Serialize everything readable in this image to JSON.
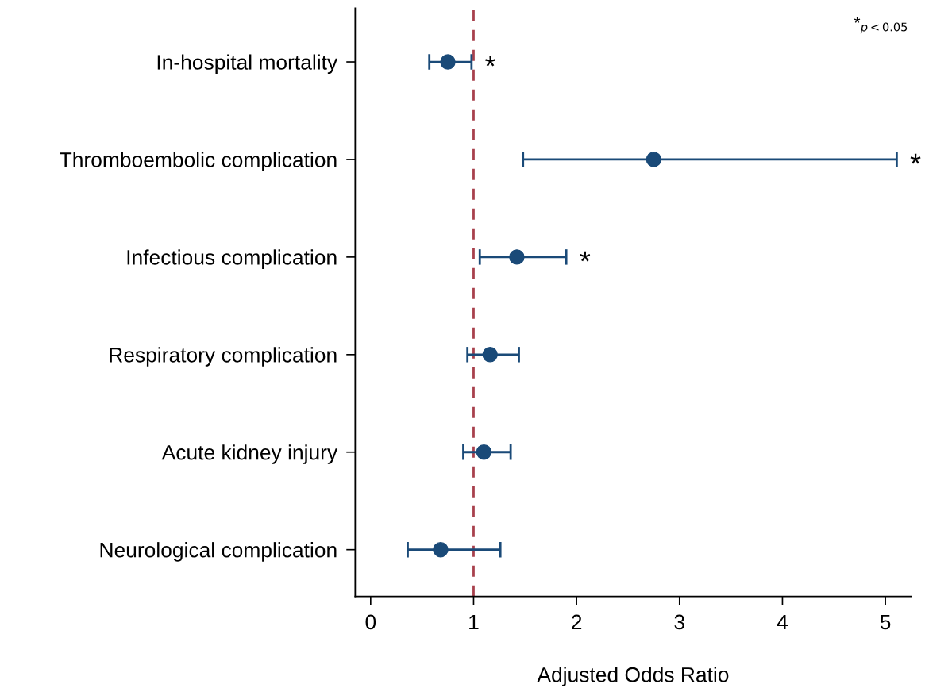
{
  "chart_data": {
    "type": "scatter",
    "orientation": "horizontal",
    "xlabel": "Adjusted Odds Ratio",
    "categories": [
      "In-hospital mortality",
      "Thromboembolic complication",
      "Infectious complication",
      "Respiratory complication",
      "Acute kidney injury",
      "Neurological complication"
    ],
    "values": [
      0.75,
      2.75,
      1.42,
      1.16,
      1.1,
      0.68
    ],
    "errors": [
      [
        0.57,
        0.98
      ],
      [
        1.48,
        5.11
      ],
      [
        1.06,
        1.9
      ],
      [
        0.94,
        1.44
      ],
      [
        0.9,
        1.36
      ],
      [
        0.36,
        1.26
      ]
    ],
    "color": "#1a4a78",
    "marker": "circle",
    "grid": false,
    "legend": false,
    "xlim": [
      -0.15,
      5.25
    ],
    "xticks": [
      0,
      1,
      2,
      3,
      4,
      5
    ],
    "ref_lines": [
      {
        "axis": "x",
        "value": 1,
        "color": "#a8404c",
        "line_style": "dashed"
      }
    ],
    "annotations": [
      "*$_{p<0.05}$",
      "*",
      "*",
      "*"
    ]
  }
}
